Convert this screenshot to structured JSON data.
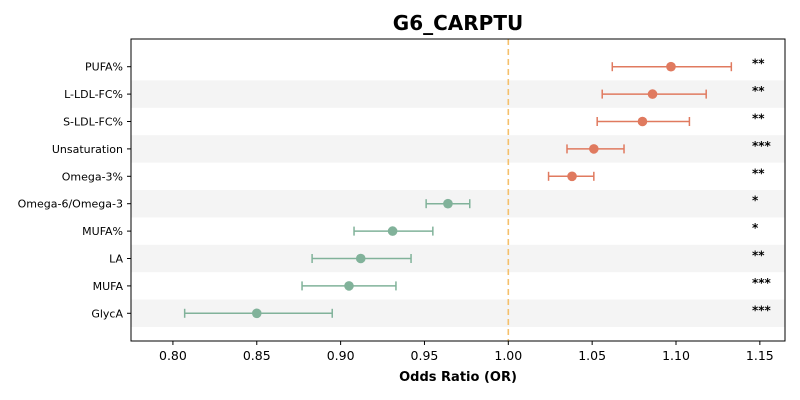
{
  "chart_data": {
    "type": "scatter",
    "subtype": "forest-plot",
    "title": "G6_CARPTU",
    "xlabel": "Odds Ratio (OR)",
    "ylabel": "",
    "xlim": [
      0.775,
      1.165
    ],
    "xticks": [
      0.8,
      0.85,
      0.9,
      0.95,
      1.0,
      1.05,
      1.1,
      1.15
    ],
    "reference_line": 1.0,
    "reference_color": "#f5c06b",
    "colors": {
      "increase": "#e07a5f",
      "decrease": "#81b29a",
      "band": "#f4f4f4"
    },
    "rows": [
      {
        "label": "PUFA%",
        "or": 1.097,
        "lo": 1.062,
        "hi": 1.133,
        "sig": "**"
      },
      {
        "label": "L-LDL-FC%",
        "or": 1.086,
        "lo": 1.056,
        "hi": 1.118,
        "sig": "**"
      },
      {
        "label": "S-LDL-FC%",
        "or": 1.08,
        "lo": 1.053,
        "hi": 1.108,
        "sig": "**"
      },
      {
        "label": "Unsaturation",
        "or": 1.051,
        "lo": 1.035,
        "hi": 1.069,
        "sig": "***"
      },
      {
        "label": "Omega-3%",
        "or": 1.038,
        "lo": 1.024,
        "hi": 1.051,
        "sig": "**"
      },
      {
        "label": "Omega-6/Omega-3",
        "or": 0.964,
        "lo": 0.951,
        "hi": 0.977,
        "sig": "*"
      },
      {
        "label": "MUFA%",
        "or": 0.931,
        "lo": 0.908,
        "hi": 0.955,
        "sig": "*"
      },
      {
        "label": "LA",
        "or": 0.912,
        "lo": 0.883,
        "hi": 0.942,
        "sig": "**"
      },
      {
        "label": "MUFA",
        "or": 0.905,
        "lo": 0.877,
        "hi": 0.933,
        "sig": "***"
      },
      {
        "label": "GlycA",
        "or": 0.85,
        "lo": 0.807,
        "hi": 0.895,
        "sig": "***"
      }
    ]
  }
}
